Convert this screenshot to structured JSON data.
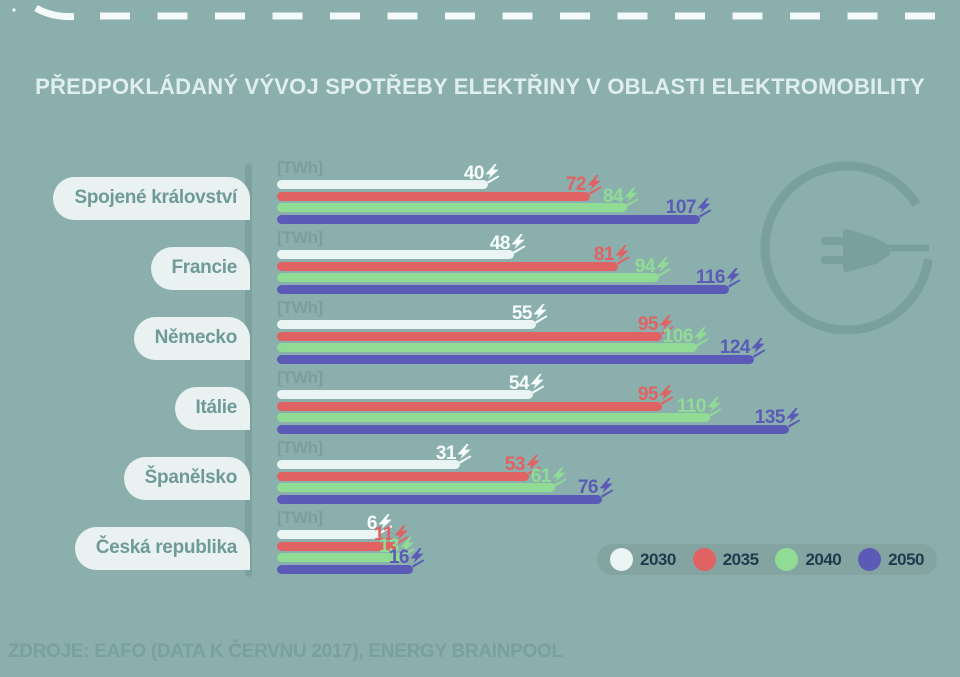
{
  "title": "PŘEDPOKLÁDANÝ VÝVOJ SPOTŘEBY ELEKTŘINY V OBLASTI ELEKTROMOBILITY",
  "unit_label": "[TWh]",
  "source": "ZDROJE: EAFO (DATA K ČERVNU 2017), ENERGY BRAINPOOL",
  "colors": {
    "background": "#8aafac",
    "accent_dark_teal": "#7aa09d",
    "pill_background": "#e9f2f0",
    "pill_text": "#6e9a97",
    "legend_background": "#84a4a1",
    "legend_text": "#1f3a4c",
    "series_2030": "#eaf5f3",
    "series_2035": "#e06263",
    "series_2040": "#90dc95",
    "series_2050": "#5b5bb7"
  },
  "icons": {
    "value_suffix": "lightning-bolt-icon",
    "right_decoration": "power-plug-circle-icon",
    "top_decoration": "dashed-road-line"
  },
  "legend": {
    "items": [
      {
        "label": "2030",
        "color": "#eaf5f3"
      },
      {
        "label": "2035",
        "color": "#e06263"
      },
      {
        "label": "2040",
        "color": "#90dc95"
      },
      {
        "label": "2050",
        "color": "#5b5bb7"
      }
    ]
  },
  "chart_data": {
    "type": "bar",
    "orientation": "horizontal",
    "title": "PŘEDPOKLÁDANÝ VÝVOJ SPOTŘEBY ELEKTŘINY V OBLASTI ELEKTROMOBILITY",
    "unit": "TWh",
    "xlabel": "[TWh]",
    "legend_position": "bottom-right",
    "grid": false,
    "categories": [
      "Spojené království",
      "Francie",
      "Německo",
      "Itálie",
      "Španělsko",
      "Česká republika"
    ],
    "series": [
      {
        "name": "2030",
        "color": "#eaf5f3",
        "label_color": "#f6fdfb",
        "values": [
          40,
          48,
          55,
          54,
          31,
          6
        ]
      },
      {
        "name": "2035",
        "color": "#e06263",
        "label_color": "#e06263",
        "values": [
          72,
          81,
          95,
          95,
          53,
          11
        ]
      },
      {
        "name": "2040",
        "color": "#90dc95",
        "label_color": "#90dc95",
        "values": [
          84,
          94,
          106,
          110,
          61,
          13
        ]
      },
      {
        "name": "2050",
        "color": "#5b5bb7",
        "label_color": "#5b5bb7",
        "values": [
          107,
          116,
          124,
          135,
          76,
          16
        ]
      }
    ]
  }
}
